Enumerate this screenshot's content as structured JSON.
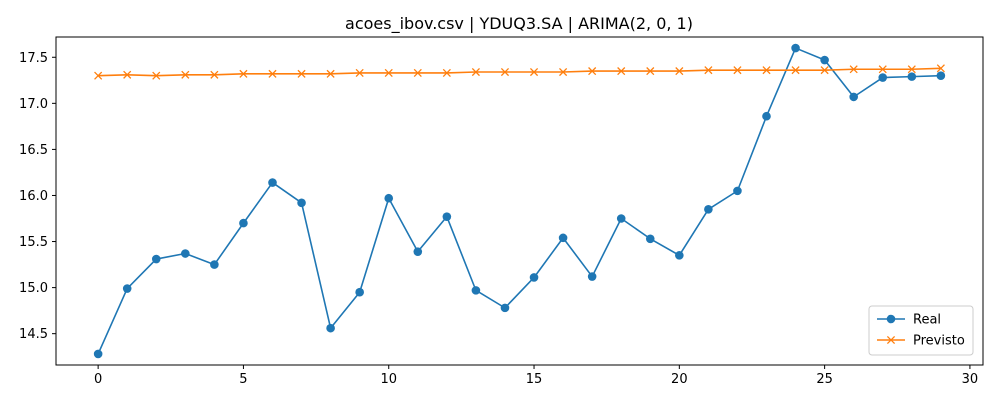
{
  "chart_data": {
    "type": "line",
    "title": "acoes_ibov.csv | YDUQ3.SA | ARIMA(2, 0, 1)",
    "xlabel": "",
    "ylabel": "",
    "xlim": [
      -1.45,
      30.45
    ],
    "ylim": [
      14.16,
      17.72
    ],
    "x_ticks": [
      0,
      5,
      10,
      15,
      20,
      25,
      30
    ],
    "x_tick_labels": [
      "0",
      "5",
      "10",
      "15",
      "20",
      "25",
      "30"
    ],
    "y_ticks": [
      14.5,
      15.0,
      15.5,
      16.0,
      16.5,
      17.0,
      17.5
    ],
    "y_tick_labels": [
      "14.5",
      "15.0",
      "15.5",
      "16.0",
      "16.5",
      "17.0",
      "17.5"
    ],
    "grid": false,
    "legend_position": "lower-right",
    "x": [
      0,
      1,
      2,
      3,
      4,
      5,
      6,
      7,
      8,
      9,
      10,
      11,
      12,
      13,
      14,
      15,
      16,
      17,
      18,
      19,
      20,
      21,
      22,
      23,
      24,
      25,
      26,
      27,
      28,
      29
    ],
    "series": [
      {
        "name": "Real",
        "marker": "circle",
        "color": "#1f77b4",
        "values": [
          14.28,
          14.99,
          15.31,
          15.37,
          15.25,
          15.7,
          16.14,
          15.92,
          14.56,
          14.95,
          15.97,
          15.39,
          15.77,
          14.97,
          14.78,
          15.11,
          15.54,
          15.12,
          15.75,
          15.53,
          15.35,
          15.85,
          16.05,
          16.86,
          17.6,
          17.47,
          17.07,
          17.28,
          17.29,
          17.3
        ]
      },
      {
        "name": "Previsto",
        "marker": "x",
        "color": "#ff7f0e",
        "values": [
          17.3,
          17.31,
          17.3,
          17.31,
          17.31,
          17.32,
          17.32,
          17.32,
          17.32,
          17.33,
          17.33,
          17.33,
          17.33,
          17.34,
          17.34,
          17.34,
          17.34,
          17.35,
          17.35,
          17.35,
          17.35,
          17.36,
          17.36,
          17.36,
          17.36,
          17.36,
          17.37,
          17.37,
          17.37,
          17.38
        ]
      }
    ]
  }
}
